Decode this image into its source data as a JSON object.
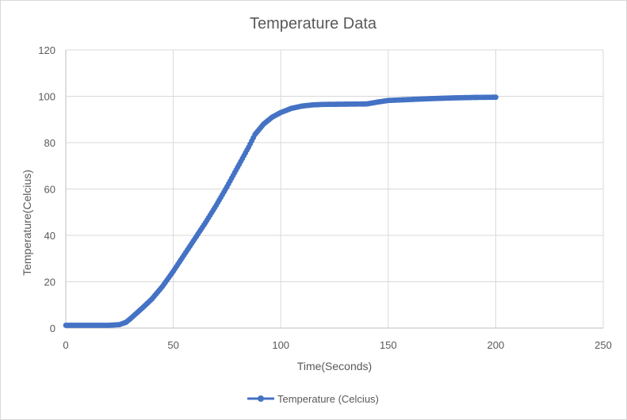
{
  "chart_data": {
    "type": "scatter",
    "title": "Temperature Data",
    "xlabel": "Time(Seconds)",
    "ylabel": "Temperature(Celcius)",
    "xlim": [
      0,
      250
    ],
    "ylim": [
      0,
      120
    ],
    "x_ticks": [
      0,
      50,
      100,
      150,
      200,
      250
    ],
    "y_ticks": [
      0,
      20,
      40,
      60,
      80,
      100,
      120
    ],
    "x_tick_labels": [
      "0",
      "50",
      "100",
      "150",
      "200",
      "250"
    ],
    "y_tick_labels": [
      "0",
      "20",
      "40",
      "60",
      "80",
      "100",
      "120"
    ],
    "grid": true,
    "legend_position": "bottom",
    "series": [
      {
        "name": "Temperature (Celcius)",
        "color": "#4472c4",
        "style": "line-with-markers",
        "x": [
          0,
          5,
          10,
          15,
          20,
          25,
          28,
          30,
          33,
          36,
          40,
          45,
          50,
          55,
          60,
          65,
          70,
          75,
          80,
          85,
          88,
          92,
          96,
          100,
          105,
          110,
          115,
          120,
          130,
          140,
          145,
          150,
          160,
          170,
          180,
          190,
          200
        ],
        "y": [
          1.2,
          1.2,
          1.2,
          1.2,
          1.2,
          1.5,
          2.5,
          4.0,
          6.5,
          9.0,
          12.5,
          18.0,
          24.5,
          31.5,
          38.5,
          45.5,
          53.0,
          61.0,
          69.5,
          78.0,
          83.5,
          88.0,
          91.0,
          93.0,
          94.8,
          95.8,
          96.3,
          96.5,
          96.6,
          96.7,
          97.5,
          98.2,
          98.6,
          99.0,
          99.3,
          99.5,
          99.6
        ]
      }
    ]
  }
}
